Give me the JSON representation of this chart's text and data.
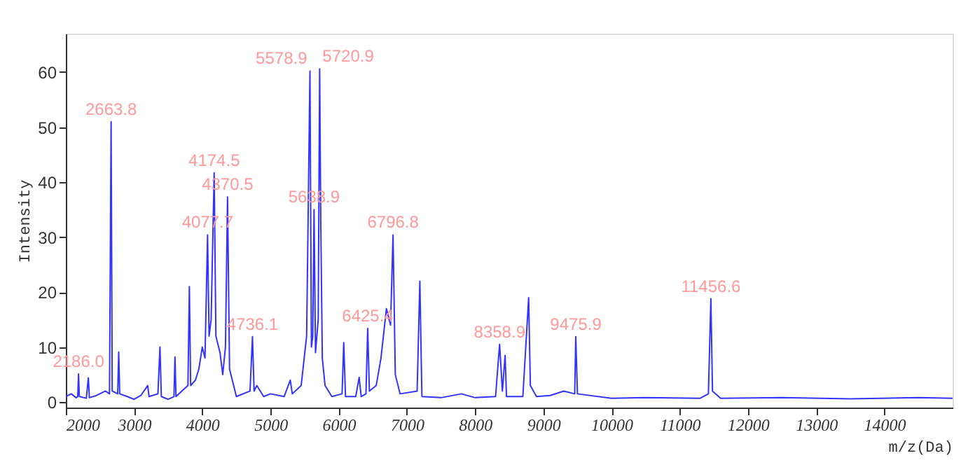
{
  "chart_data": {
    "type": "line",
    "xlabel": "m/z(Da)",
    "ylabel": "Intensity",
    "xlim": [
      2000,
      15000
    ],
    "xticks": [
      2000,
      3000,
      4000,
      5000,
      6000,
      7000,
      8000,
      9000,
      10000,
      11000,
      12000,
      13000,
      14000
    ],
    "ylim": [
      -1,
      67
    ],
    "yticks": [
      0,
      10,
      20,
      30,
      40,
      50,
      60
    ],
    "grid": false,
    "marker": "none",
    "line_style": "solid",
    "x": [
      2000,
      2080,
      2150,
      2175,
      2186,
      2198,
      2300,
      2330,
      2345,
      2450,
      2580,
      2640,
      2663.8,
      2680,
      2760,
      2775,
      2790,
      2900,
      3000,
      3100,
      3200,
      3220,
      3350,
      3380,
      3400,
      3500,
      3585,
      3600,
      3615,
      3700,
      3790,
      3811,
      3830,
      3900,
      3950,
      4000,
      4040,
      4077.7,
      4100,
      4130,
      4174.5,
      4200,
      4260,
      4300,
      4340,
      4370.5,
      4400,
      4500,
      4700,
      4736.1,
      4760,
      4800,
      4900,
      5000,
      5200,
      5290,
      5320,
      5450,
      5530,
      5578.9,
      5600,
      5620,
      5638.9,
      5660,
      5700,
      5720.9,
      5738,
      5760,
      5800,
      5900,
      6050,
      6074,
      6100,
      6250,
      6300,
      6330,
      6400,
      6425.4,
      6450,
      6550,
      6620,
      6700,
      6760,
      6796.8,
      6830,
      6900,
      7150,
      7190,
      7220,
      7500,
      7800,
      8000,
      8300,
      8358.9,
      8400,
      8440,
      8460,
      8700,
      8785,
      8810,
      8900,
      9100,
      9300,
      9460,
      9475.9,
      9500,
      10000,
      10500,
      11300,
      11420,
      11456.6,
      11480,
      11600,
      12500,
      13500,
      14500,
      15000
    ],
    "series": [
      {
        "color": "#3333ff",
        "values": [
          1,
          1.5,
          0.8,
          1,
          5.1,
          1,
          0.7,
          4.4,
          0.8,
          1.2,
          2,
          1.5,
          51,
          2,
          1.5,
          9.1,
          1.5,
          1,
          0.5,
          1.2,
          3,
          1,
          1.5,
          10,
          1,
          0.5,
          1,
          8.2,
          1,
          2,
          3,
          21,
          3,
          4,
          6,
          10,
          8,
          30.4,
          12,
          15,
          41.7,
          12,
          9,
          5,
          10,
          37.3,
          6,
          1,
          2,
          11.9,
          2,
          3,
          1,
          1.5,
          1,
          4,
          1.5,
          3,
          12,
          60.2,
          10,
          12,
          35,
          9,
          15,
          60.6,
          32,
          8,
          3,
          1,
          1.5,
          10.8,
          1,
          1,
          4.5,
          1,
          1.5,
          13.4,
          2,
          3,
          8,
          17,
          14,
          30.4,
          5,
          1.5,
          2,
          22,
          1,
          0.8,
          1.5,
          0.8,
          1,
          10.5,
          2,
          8.5,
          1,
          1,
          19,
          3,
          1,
          1.2,
          2,
          1.5,
          11.9,
          1.5,
          0.7,
          0.8,
          0.7,
          1.5,
          18.8,
          2,
          0.7,
          0.8,
          0.6,
          0.8,
          0.7
        ]
      }
    ],
    "annotations": [
      {
        "text": "2186.0",
        "x": 2186,
        "y": 5.1
      },
      {
        "text": "2663.8",
        "x": 2663.8,
        "y": 51
      },
      {
        "text": "4077.7",
        "x": 4077.7,
        "y": 30.4
      },
      {
        "text": "4174.5",
        "x": 4174.5,
        "y": 41.7
      },
      {
        "text": "4370.5",
        "x": 4370.5,
        "y": 37.3
      },
      {
        "text": "4736.1",
        "x": 4736.1,
        "y": 11.9
      },
      {
        "text": "5578.9",
        "x": 5578.9,
        "y": 60.2
      },
      {
        "text": "5638.9",
        "x": 5638.9,
        "y": 35
      },
      {
        "text": "5720.9",
        "x": 5720.9,
        "y": 60.6
      },
      {
        "text": "6425.4",
        "x": 6425.4,
        "y": 13.4
      },
      {
        "text": "6796.8",
        "x": 6796.8,
        "y": 30.4
      },
      {
        "text": "8358.9",
        "x": 8358.9,
        "y": 10.5
      },
      {
        "text": "9475.9",
        "x": 9475.9,
        "y": 11.9
      },
      {
        "text": "11456.6",
        "x": 11456.6,
        "y": 18.8
      }
    ]
  }
}
